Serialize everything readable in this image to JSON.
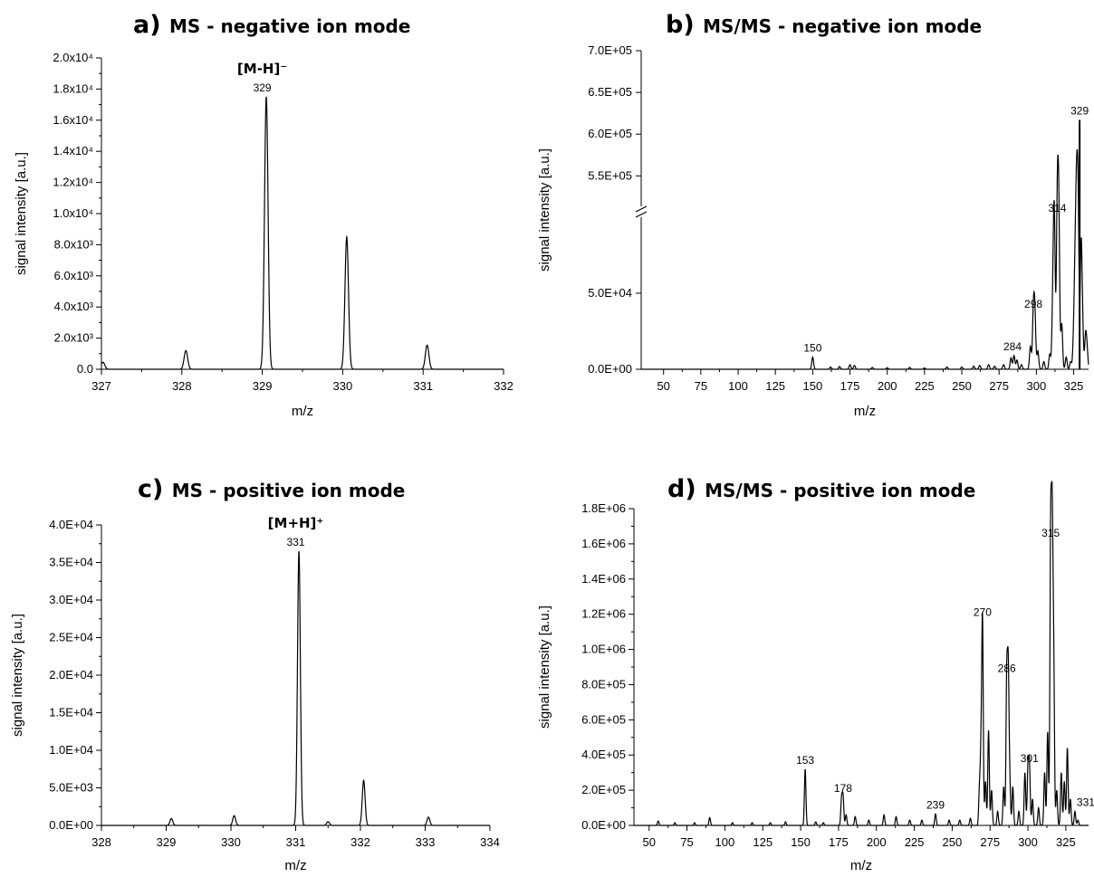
{
  "chart_data": [
    {
      "id": "a",
      "type": "line",
      "panel_letter": "a)",
      "title": "MS - negative ion mode",
      "xlabel": "m/z",
      "ylabel": "signal intensity [a.u.]",
      "xlim": [
        327,
        332
      ],
      "ylim": [
        0,
        20000
      ],
      "x_ticks": [
        "327",
        "328",
        "329",
        "330",
        "331",
        "332"
      ],
      "y_ticks": [
        "0.0",
        "2.0x10³",
        "4.0x10³",
        "6.0x10³",
        "8.0x10³",
        "1.0x10⁴",
        "1.2x10⁴",
        "1.4x10⁴",
        "1.6x10⁴",
        "1.8x10⁴",
        "2.0x10⁴"
      ],
      "ion_label": "[M-H]⁻",
      "ion_x": 329,
      "series": [
        {
          "peaks": [
            {
              "x": 327.02,
              "y": 450
            },
            {
              "x": 328.05,
              "y": 1200
            },
            {
              "x": 329.05,
              "y": 17500
            },
            {
              "x": 330.05,
              "y": 8500
            },
            {
              "x": 331.05,
              "y": 1550
            }
          ]
        }
      ],
      "peak_labels": [
        {
          "x": 329.0,
          "y": 17500,
          "text": "329"
        }
      ]
    },
    {
      "id": "b",
      "type": "line",
      "panel_letter": "b)",
      "title": "MS/MS - negative ion mode",
      "xlabel": "m/z",
      "ylabel": "signal intensity [a.u.]",
      "xlim": [
        35,
        335
      ],
      "ylim_lower": [
        0,
        100000
      ],
      "ylim_upper": [
        520000,
        700000
      ],
      "x_ticks": [
        "50",
        "75",
        "100",
        "125",
        "150",
        "175",
        "200",
        "225",
        "250",
        "275",
        "300",
        "325"
      ],
      "y_ticks_lower": [
        "0.0E+00",
        "5.0E+04"
      ],
      "y_ticks_upper": [
        "5.5E+05",
        "6.0E+05",
        "6.5E+05",
        "7.0E+05"
      ],
      "series": [
        {
          "peaks": [
            {
              "x": 150,
              "y": 8000
            },
            {
              "x": 162,
              "y": 1500
            },
            {
              "x": 168,
              "y": 1800
            },
            {
              "x": 175,
              "y": 3000
            },
            {
              "x": 178,
              "y": 2500
            },
            {
              "x": 190,
              "y": 1200
            },
            {
              "x": 200,
              "y": 1000
            },
            {
              "x": 215,
              "y": 1200
            },
            {
              "x": 225,
              "y": 800
            },
            {
              "x": 240,
              "y": 1500
            },
            {
              "x": 250,
              "y": 1500
            },
            {
              "x": 258,
              "y": 2000
            },
            {
              "x": 262,
              "y": 2500
            },
            {
              "x": 268,
              "y": 3000
            },
            {
              "x": 272,
              "y": 2000
            },
            {
              "x": 278,
              "y": 3000
            },
            {
              "x": 283,
              "y": 7500
            },
            {
              "x": 285,
              "y": 9000
            },
            {
              "x": 287,
              "y": 6000
            },
            {
              "x": 290,
              "y": 3000
            },
            {
              "x": 296,
              "y": 15000
            },
            {
              "x": 298,
              "y": 37000
            },
            {
              "x": 299,
              "y": 35000
            },
            {
              "x": 301,
              "y": 12000
            },
            {
              "x": 305,
              "y": 5000
            },
            {
              "x": 309,
              "y": 10000
            },
            {
              "x": 311,
              "y": 40000
            },
            {
              "x": 312,
              "y": 100000
            },
            {
              "x": 314,
              "y": 100000
            },
            {
              "x": 315,
              "y": 100000
            },
            {
              "x": 317,
              "y": 30000
            },
            {
              "x": 320,
              "y": 8000
            },
            {
              "x": 323,
              "y": 5000
            },
            {
              "x": 325,
              "y": 20000
            },
            {
              "x": 326,
              "y": 60000
            },
            {
              "x": 327,
              "y": 100000
            },
            {
              "x": 328,
              "y": 100000
            },
            {
              "x": 329,
              "y": 617000
            },
            {
              "x": 330,
              "y": 80000
            },
            {
              "x": 331,
              "y": 25000
            },
            {
              "x": 333,
              "y": 22000
            },
            {
              "x": 334,
              "y": 12000
            }
          ]
        }
      ],
      "peak_labels": [
        {
          "x": 150,
          "y": 8000,
          "text": "150"
        },
        {
          "x": 284,
          "y": 9000,
          "text": "284"
        },
        {
          "x": 298,
          "y": 37000,
          "text": "298"
        },
        {
          "x": 314,
          "y": 100000,
          "text": "314"
        },
        {
          "x": 329,
          "y": 617000,
          "text": "329"
        }
      ]
    },
    {
      "id": "c",
      "type": "line",
      "panel_letter": "c)",
      "title": "MS - positive ion mode",
      "xlabel": "m/z",
      "ylabel": "signal intensity [a.u.]",
      "xlim": [
        328,
        334
      ],
      "ylim": [
        0,
        40000
      ],
      "x_ticks": [
        "328",
        "329",
        "330",
        "331",
        "332",
        "333",
        "334"
      ],
      "y_ticks": [
        "0.0E+00",
        "5.0E+03",
        "1.0E+04",
        "1.5E+04",
        "2.0E+04",
        "2.5E+04",
        "3.0E+04",
        "3.5E+04",
        "4.0E+04"
      ],
      "ion_label": "[M+H]⁺",
      "ion_x": 331,
      "series": [
        {
          "peaks": [
            {
              "x": 329.08,
              "y": 900
            },
            {
              "x": 330.05,
              "y": 1300
            },
            {
              "x": 331.05,
              "y": 36500
            },
            {
              "x": 331.5,
              "y": 500
            },
            {
              "x": 332.05,
              "y": 6000
            },
            {
              "x": 333.05,
              "y": 1100
            }
          ]
        }
      ],
      "peak_labels": [
        {
          "x": 331.0,
          "y": 36500,
          "text": "331"
        }
      ]
    },
    {
      "id": "d",
      "type": "line",
      "panel_letter": "d)",
      "title": "MS/MS - positive ion mode",
      "xlabel": "m/z",
      "ylabel": "signal intensity [a.u.]",
      "xlim": [
        40,
        340
      ],
      "ylim": [
        0,
        1800000
      ],
      "x_ticks": [
        "50",
        "75",
        "100",
        "125",
        "150",
        "175",
        "200",
        "225",
        "250",
        "275",
        "300",
        "325"
      ],
      "y_ticks": [
        "0.0E+00",
        "2.0E+05",
        "4.0E+05",
        "6.0E+05",
        "8.0E+05",
        "1.0E+06",
        "1.2E+06",
        "1.4E+06",
        "1.6E+06",
        "1.8E+06"
      ],
      "series": [
        {
          "peaks": [
            {
              "x": 56,
              "y": 25000
            },
            {
              "x": 67,
              "y": 15000
            },
            {
              "x": 80,
              "y": 15000
            },
            {
              "x": 90,
              "y": 45000
            },
            {
              "x": 105,
              "y": 15000
            },
            {
              "x": 118,
              "y": 15000
            },
            {
              "x": 130,
              "y": 15000
            },
            {
              "x": 140,
              "y": 20000
            },
            {
              "x": 153,
              "y": 320000
            },
            {
              "x": 160,
              "y": 20000
            },
            {
              "x": 165,
              "y": 15000
            },
            {
              "x": 177,
              "y": 150000
            },
            {
              "x": 178,
              "y": 160000
            },
            {
              "x": 180,
              "y": 60000
            },
            {
              "x": 186,
              "y": 50000
            },
            {
              "x": 195,
              "y": 30000
            },
            {
              "x": 205,
              "y": 60000
            },
            {
              "x": 213,
              "y": 50000
            },
            {
              "x": 222,
              "y": 30000
            },
            {
              "x": 230,
              "y": 30000
            },
            {
              "x": 239,
              "y": 65000
            },
            {
              "x": 248,
              "y": 30000
            },
            {
              "x": 255,
              "y": 30000
            },
            {
              "x": 262,
              "y": 40000
            },
            {
              "x": 268,
              "y": 200000
            },
            {
              "x": 269,
              "y": 370000
            },
            {
              "x": 270,
              "y": 1160000
            },
            {
              "x": 272,
              "y": 250000
            },
            {
              "x": 274,
              "y": 540000
            },
            {
              "x": 276,
              "y": 200000
            },
            {
              "x": 280,
              "y": 80000
            },
            {
              "x": 284,
              "y": 220000
            },
            {
              "x": 286,
              "y": 820000
            },
            {
              "x": 287,
              "y": 840000
            },
            {
              "x": 288,
              "y": 240000
            },
            {
              "x": 290,
              "y": 220000
            },
            {
              "x": 294,
              "y": 80000
            },
            {
              "x": 298,
              "y": 300000
            },
            {
              "x": 300,
              "y": 320000
            },
            {
              "x": 301,
              "y": 330000
            },
            {
              "x": 303,
              "y": 150000
            },
            {
              "x": 307,
              "y": 100000
            },
            {
              "x": 311,
              "y": 300000
            },
            {
              "x": 313,
              "y": 530000
            },
            {
              "x": 315,
              "y": 1610000
            },
            {
              "x": 316,
              "y": 1580000
            },
            {
              "x": 317,
              "y": 900000
            },
            {
              "x": 319,
              "y": 200000
            },
            {
              "x": 322,
              "y": 300000
            },
            {
              "x": 324,
              "y": 250000
            },
            {
              "x": 326,
              "y": 440000
            },
            {
              "x": 328,
              "y": 150000
            },
            {
              "x": 331,
              "y": 80000
            },
            {
              "x": 333,
              "y": 30000
            }
          ]
        }
      ],
      "peak_labels": [
        {
          "x": 153,
          "y": 320000,
          "text": "153"
        },
        {
          "x": 178,
          "y": 160000,
          "text": "178"
        },
        {
          "x": 239,
          "y": 65000,
          "text": "239"
        },
        {
          "x": 270,
          "y": 1160000,
          "text": "270"
        },
        {
          "x": 286,
          "y": 840000,
          "text": "286"
        },
        {
          "x": 301,
          "y": 330000,
          "text": "301"
        },
        {
          "x": 315,
          "y": 1610000,
          "text": "315"
        },
        {
          "x": 331,
          "y": 80000,
          "text": "331"
        }
      ]
    }
  ]
}
